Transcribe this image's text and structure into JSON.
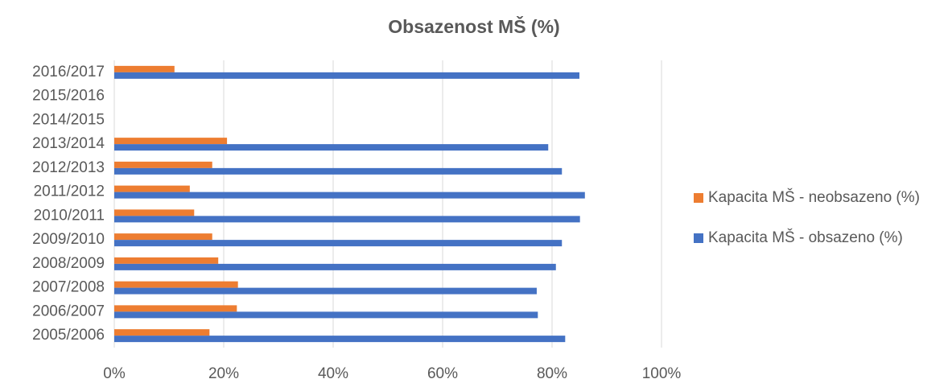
{
  "chart_data": {
    "type": "hbar",
    "title": "Obsazenost MŠ (%)",
    "categories": [
      "2016/2017",
      "2015/2016",
      "2014/2015",
      "2013/2014",
      "2012/2013",
      "2011/2012",
      "2010/2011",
      "2009/2010",
      "2008/2009",
      "2007/2008",
      "2006/2007",
      "2005/2006"
    ],
    "series": [
      {
        "name": "Kapacita MŠ - neobsazeno (%)",
        "color": "#ed7d31",
        "values": [
          11,
          null,
          null,
          20.6,
          17.9,
          13.8,
          14.6,
          17.9,
          19.0,
          22.6,
          22.4,
          17.4
        ]
      },
      {
        "name": "Kapacita MŠ - obsazeno (%)",
        "color": "#4472c4",
        "values": [
          85.0,
          null,
          null,
          79.3,
          81.8,
          86.0,
          85.1,
          81.8,
          80.7,
          77.2,
          77.4,
          82.4
        ]
      }
    ],
    "xlim": [
      0,
      100
    ],
    "xticks": [
      {
        "value": 0,
        "label": "0%"
      },
      {
        "value": 20,
        "label": "20%"
      },
      {
        "value": 40,
        "label": "40%"
      },
      {
        "value": 60,
        "label": "60%"
      },
      {
        "value": 80,
        "label": "80%"
      },
      {
        "value": 100,
        "label": "100%"
      }
    ],
    "grid": true
  }
}
